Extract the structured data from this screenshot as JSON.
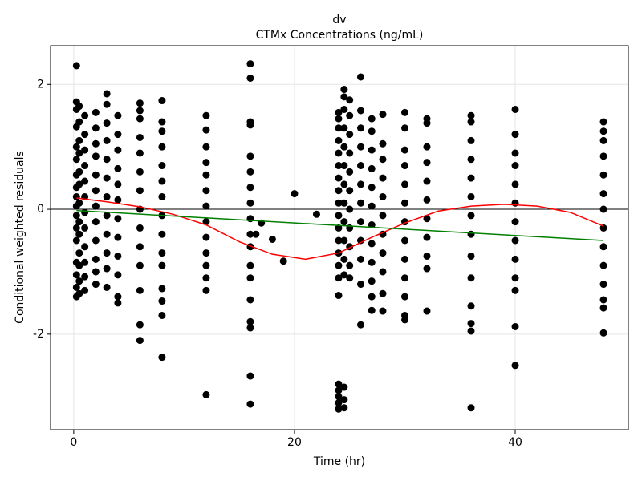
{
  "chart_data": {
    "type": "scatter",
    "title": "dv",
    "subtitle": "CTMx Concentrations (ng/mL)",
    "x_label": "Time (hr)",
    "y_label": "Conditional weighted residuals",
    "xlim": [
      -2.1,
      50.25
    ],
    "ylim": [
      -3.53,
      2.62
    ],
    "xticks": [
      0,
      20,
      40
    ],
    "yticks": [
      -2,
      0,
      2
    ],
    "grid": true,
    "hlines": [
      {
        "value": 0,
        "color": "#000000"
      }
    ],
    "series": [
      {
        "color": "#000000",
        "x": [
          0.25,
          0.25,
          0.25,
          0.25,
          0.25,
          0.25,
          0.25,
          0.25,
          0.25,
          0.25,
          0.25,
          0.25,
          0.25,
          0.25,
          0.25,
          0.25,
          0.25
        ],
        "values": [
          2.3,
          1.72,
          1.6,
          1.32,
          1.0,
          0.8,
          0.55,
          0.35,
          0.2,
          0.05,
          -0.1,
          -0.3,
          -0.5,
          -0.85,
          -1.05,
          -1.25,
          -1.4
        ]
      },
      {
        "color": "#000000",
        "x": [
          0.5,
          0.5,
          0.5,
          0.5,
          0.5,
          0.5,
          0.5,
          0.5,
          0.5,
          0.5,
          0.5,
          0.5,
          0.5
        ],
        "values": [
          1.65,
          1.4,
          1.1,
          0.9,
          0.6,
          0.4,
          0.1,
          -0.2,
          -0.4,
          -0.7,
          -0.9,
          -1.15,
          -1.35
        ]
      },
      {
        "color": "#000000",
        "x": [
          1,
          1,
          1,
          1,
          1,
          1,
          1,
          1,
          1,
          1,
          1,
          1
        ],
        "values": [
          1.5,
          1.2,
          0.95,
          0.7,
          0.45,
          0.2,
          -0.05,
          -0.3,
          -0.6,
          -0.85,
          -1.08,
          -1.3
        ]
      },
      {
        "color": "#000000",
        "x": [
          2,
          2,
          2,
          2,
          2,
          2,
          2,
          2,
          2,
          2,
          2,
          2
        ],
        "values": [
          1.55,
          1.3,
          1.05,
          0.85,
          0.55,
          0.3,
          0.05,
          -0.2,
          -0.5,
          -0.8,
          -1.0,
          -1.2
        ]
      },
      {
        "color": "#000000",
        "x": [
          3,
          3,
          3,
          3,
          3,
          3,
          3,
          3,
          3,
          3,
          3,
          3
        ],
        "values": [
          1.85,
          1.68,
          1.38,
          1.1,
          0.8,
          0.5,
          0.2,
          -0.1,
          -0.4,
          -0.7,
          -0.95,
          -1.25
        ]
      },
      {
        "color": "#000000",
        "x": [
          4,
          4,
          4,
          4,
          4,
          4,
          4,
          4,
          4,
          4,
          4,
          4
        ],
        "values": [
          1.5,
          1.2,
          0.95,
          0.65,
          0.4,
          0.15,
          -0.15,
          -0.45,
          -0.75,
          -1.05,
          -1.4,
          -1.5
        ]
      },
      {
        "color": "#000000",
        "x": [
          6,
          6,
          6,
          6,
          6,
          6,
          6,
          6,
          6,
          6,
          6,
          6,
          6,
          6
        ],
        "values": [
          1.7,
          1.58,
          1.45,
          1.15,
          0.9,
          0.6,
          0.3,
          0.0,
          -0.3,
          -0.6,
          -0.9,
          -1.3,
          -1.85,
          -2.1
        ]
      },
      {
        "color": "#000000",
        "x": [
          8,
          8,
          8,
          8,
          8,
          8,
          8,
          8,
          8,
          8,
          8,
          8,
          8,
          8,
          8
        ],
        "values": [
          1.74,
          1.4,
          1.25,
          1.0,
          0.7,
          0.45,
          0.2,
          -0.1,
          -0.4,
          -0.7,
          -0.9,
          -1.27,
          -1.47,
          -1.7,
          -2.37
        ]
      },
      {
        "color": "#000000",
        "x": [
          12,
          12,
          12,
          12,
          12,
          12,
          12,
          12,
          12,
          12,
          12,
          12,
          12,
          12
        ],
        "values": [
          1.5,
          1.27,
          1.0,
          0.75,
          0.55,
          0.3,
          0.05,
          -0.2,
          -0.45,
          -0.7,
          -0.9,
          -1.1,
          -1.3,
          -2.97
        ]
      },
      {
        "color": "#000000",
        "x": [
          16,
          16,
          16,
          16,
          16,
          16,
          16,
          16,
          16,
          16,
          16,
          16,
          16,
          16,
          16,
          16,
          16,
          16
        ],
        "values": [
          2.33,
          2.1,
          1.4,
          1.35,
          0.85,
          0.6,
          0.35,
          0.1,
          -0.15,
          -0.4,
          -0.6,
          -0.9,
          -1.1,
          -1.45,
          -1.8,
          -1.9,
          -2.67,
          -3.12
        ]
      },
      {
        "color": "#000000",
        "x": [
          16.5,
          17,
          18,
          19,
          20,
          22
        ],
        "values": [
          -0.4,
          -0.22,
          -0.48,
          -0.83,
          0.25,
          -0.08
        ]
      },
      {
        "color": "#000000",
        "x": [
          24,
          24,
          24,
          24,
          24,
          24,
          24,
          24,
          24,
          24,
          24,
          24,
          24,
          24,
          24,
          24,
          24,
          24,
          24,
          24,
          24
        ],
        "values": [
          1.55,
          1.45,
          1.3,
          1.1,
          0.9,
          0.7,
          0.5,
          0.3,
          0.1,
          -0.1,
          -0.3,
          -0.5,
          -0.7,
          -0.9,
          -1.1,
          -1.38,
          -2.8,
          -2.9,
          -3.0,
          -3.1,
          -3.2
        ]
      },
      {
        "color": "#000000",
        "x": [
          24.5,
          24.5,
          24.5,
          24.5,
          24.5,
          24.5,
          24.5,
          24.5,
          24.5,
          24.5,
          24.5,
          24.5,
          24.5,
          24.5,
          24.5
        ],
        "values": [
          1.92,
          1.8,
          1.6,
          1.3,
          1.0,
          0.7,
          0.4,
          0.1,
          -0.2,
          -0.5,
          -0.8,
          -1.05,
          -2.85,
          -3.05,
          -3.18
        ]
      },
      {
        "color": "#000000",
        "x": [
          25,
          25,
          25,
          25,
          25,
          25,
          25,
          25,
          25,
          25,
          25
        ],
        "values": [
          1.75,
          1.5,
          1.2,
          0.9,
          0.6,
          0.3,
          0.0,
          -0.3,
          -0.6,
          -0.9,
          -1.1
        ]
      },
      {
        "color": "#000000",
        "x": [
          26,
          26,
          26,
          26,
          26,
          26,
          26,
          26,
          26,
          26,
          26,
          26
        ],
        "values": [
          2.12,
          1.58,
          1.3,
          1.0,
          0.7,
          0.4,
          0.1,
          -0.2,
          -0.5,
          -0.8,
          -1.2,
          -1.85
        ]
      },
      {
        "color": "#000000",
        "x": [
          27,
          27,
          27,
          27,
          27,
          27,
          27,
          27,
          27,
          27,
          27,
          27
        ],
        "values": [
          1.45,
          1.25,
          0.95,
          0.65,
          0.35,
          0.05,
          -0.25,
          -0.55,
          -0.85,
          -1.15,
          -1.4,
          -1.62
        ]
      },
      {
        "color": "#000000",
        "x": [
          28,
          28,
          28,
          28,
          28,
          28,
          28,
          28,
          28,
          28,
          28
        ],
        "values": [
          1.52,
          1.05,
          0.8,
          0.5,
          0.2,
          -0.1,
          -0.4,
          -0.7,
          -1.0,
          -1.35,
          -1.63
        ]
      },
      {
        "color": "#000000",
        "x": [
          30,
          30,
          30,
          30,
          30,
          30,
          30,
          30,
          30,
          30,
          30,
          30,
          30
        ],
        "values": [
          1.55,
          1.3,
          0.95,
          0.7,
          0.4,
          0.1,
          -0.2,
          -0.5,
          -0.8,
          -1.1,
          -1.4,
          -1.7,
          -1.77
        ]
      },
      {
        "color": "#000000",
        "x": [
          32,
          32,
          32,
          32,
          32,
          32,
          32,
          32,
          32,
          32,
          32
        ],
        "values": [
          1.45,
          1.38,
          1.0,
          0.75,
          0.45,
          0.15,
          -0.15,
          -0.45,
          -0.75,
          -0.95,
          -1.63
        ]
      },
      {
        "color": "#000000",
        "x": [
          36,
          36,
          36,
          36,
          36,
          36,
          36,
          36,
          36,
          36,
          36,
          36,
          36,
          36
        ],
        "values": [
          1.5,
          1.4,
          1.1,
          0.8,
          0.5,
          0.2,
          -0.1,
          -0.4,
          -0.75,
          -1.1,
          -1.55,
          -1.83,
          -1.95,
          -3.18
        ]
      },
      {
        "color": "#000000",
        "x": [
          40,
          40,
          40,
          40,
          40,
          40,
          40,
          40,
          40,
          40,
          40,
          40,
          40
        ],
        "values": [
          1.6,
          1.2,
          0.9,
          0.7,
          0.4,
          0.1,
          -0.2,
          -0.5,
          -0.8,
          -1.1,
          -1.3,
          -1.88,
          -2.5
        ]
      },
      {
        "color": "#000000",
        "x": [
          48,
          48,
          48,
          48,
          48,
          48,
          48,
          48,
          48,
          48,
          48,
          48,
          48,
          48
        ],
        "values": [
          1.4,
          1.25,
          1.1,
          0.85,
          0.55,
          0.25,
          0.0,
          -0.3,
          -0.6,
          -0.9,
          -1.2,
          -1.45,
          -1.58,
          -1.98
        ]
      },
      {
        "color": "#ff0000",
        "mode": "line",
        "x": [
          0.25,
          3,
          6,
          9,
          12,
          15,
          18,
          21,
          24,
          27,
          30,
          33,
          36,
          39,
          42,
          45,
          48
        ],
        "values": [
          0.18,
          0.12,
          0.04,
          -0.08,
          -0.25,
          -0.52,
          -0.72,
          -0.8,
          -0.7,
          -0.45,
          -0.22,
          -0.03,
          0.05,
          0.08,
          0.05,
          -0.05,
          -0.27
        ]
      },
      {
        "color": "#008000",
        "mode": "line",
        "x": [
          0.25,
          48
        ],
        "values": [
          -0.02,
          -0.5
        ]
      }
    ]
  }
}
